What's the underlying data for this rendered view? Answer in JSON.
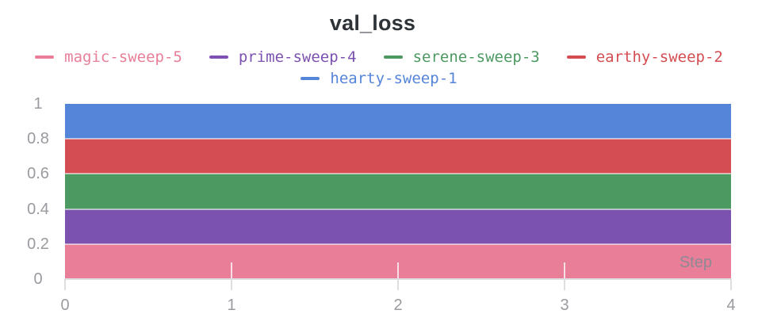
{
  "title": "val_loss",
  "legend": {
    "items": [
      {
        "label": "magic-sweep-5",
        "color": "#e87e98"
      },
      {
        "label": "prime-sweep-4",
        "color": "#7c52b1"
      },
      {
        "label": "serene-sweep-3",
        "color": "#4d9962"
      },
      {
        "label": "earthy-sweep-2",
        "color": "#d44d52"
      },
      {
        "label": "hearty-sweep-1",
        "color": "#5585d8"
      }
    ]
  },
  "axes": {
    "y": {
      "tick_labels": [
        "1",
        "0.8",
        "0.6",
        "0.4",
        "0.2",
        "0"
      ]
    },
    "x": {
      "tick_labels": [
        "0",
        "1",
        "2",
        "3",
        "4"
      ],
      "axis_label": "Step"
    }
  },
  "chart_data": {
    "type": "area",
    "title": "val_loss",
    "xlabel": "Step",
    "ylabel": "",
    "x": [
      0,
      1,
      2,
      3,
      4
    ],
    "xlim": [
      0,
      4
    ],
    "ylim": [
      0,
      1
    ],
    "y_ticks": [
      0,
      0.2,
      0.4,
      0.6,
      0.8,
      1
    ],
    "grid": true,
    "legend_position": "top",
    "series": [
      {
        "name": "hearty-sweep-1",
        "color": "#5585d8",
        "values": [
          1.0,
          1.0,
          1.0,
          1.0,
          1.0
        ]
      },
      {
        "name": "earthy-sweep-2",
        "color": "#d44d52",
        "values": [
          0.8,
          0.8,
          0.8,
          0.8,
          0.8
        ]
      },
      {
        "name": "serene-sweep-3",
        "color": "#4d9962",
        "values": [
          0.6,
          0.6,
          0.6,
          0.6,
          0.6
        ]
      },
      {
        "name": "prime-sweep-4",
        "color": "#7c52b1",
        "values": [
          0.4,
          0.4,
          0.4,
          0.4,
          0.4
        ]
      },
      {
        "name": "magic-sweep-5",
        "color": "#e87e98",
        "values": [
          0.2,
          0.2,
          0.2,
          0.2,
          0.2
        ]
      }
    ],
    "note": "Each run has a constant val_loss; opaque area fills from 0 to each value render as five equal stacked-looking bands of 0.2."
  }
}
